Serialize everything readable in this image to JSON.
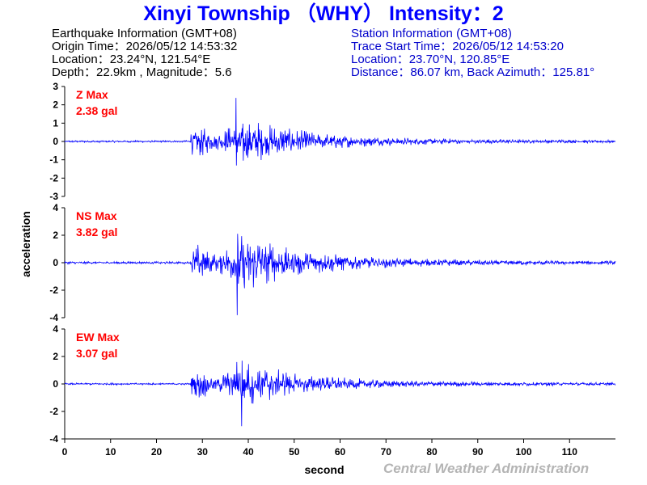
{
  "title": "Xinyi Township （WHY） Intensity：2",
  "earthquake": {
    "heading": "Earthquake Information  (GMT+08)",
    "origin_time": "Origin Time：2026/05/12 14:53:32",
    "location": "Location：23.24°N, 121.54°E",
    "depth_magnitude": "Depth：22.9km , Magnitude：5.6"
  },
  "station": {
    "heading": "Station Information  (GMT+08)",
    "trace_start": "Trace Start Time：2026/05/12 14:53:20",
    "location": "Location：23.70°N, 120.85°E",
    "distance": "Distance：86.07 km, Back Azimuth：125.81°"
  },
  "credit": "Central Weather Administration",
  "colors": {
    "title": "#0000ff",
    "trace": "#0000ff",
    "max_label": "#ff0000",
    "station_text": "#0000cc",
    "credit": "#b4b4b4"
  },
  "chart_data": {
    "type": "line",
    "xlabel": "second",
    "ylabel": "acceleration",
    "xlim": [
      0,
      120
    ],
    "x_ticks": [
      0,
      10,
      20,
      30,
      40,
      50,
      60,
      70,
      80,
      90,
      100,
      110
    ],
    "x_tick_labels": [
      "0",
      "10",
      "20",
      "30",
      "40",
      "50",
      "60",
      "70",
      "80",
      "90",
      "100",
      "110"
    ],
    "p_arrival_s": 27.5,
    "s_arrival_s": 37.5,
    "series": [
      {
        "component": "Z",
        "label_line1": "Z Max",
        "label_line2": "2.38 gal",
        "max_gal": 2.38,
        "ylim": [
          -3,
          3
        ],
        "y_ticks": [
          3,
          2,
          1,
          0,
          -1,
          -2,
          -3
        ],
        "y_tick_labels": [
          "3",
          "2",
          "1",
          "0",
          "-1",
          "-2",
          "-3"
        ],
        "peak_time_s": 37.3,
        "peak_sign": 1
      },
      {
        "component": "NS",
        "label_line1": "NS Max",
        "label_line2": "3.82 gal",
        "max_gal": 3.82,
        "ylim": [
          -4,
          4
        ],
        "y_ticks": [
          4,
          2,
          0,
          -2,
          -4
        ],
        "y_tick_labels": [
          "4",
          "2",
          "0",
          "-2",
          "-4"
        ],
        "peak_time_s": 37.6,
        "peak_sign": -1
      },
      {
        "component": "EW",
        "label_line1": "EW Max",
        "label_line2": "3.07 gal",
        "max_gal": 3.07,
        "ylim": [
          -4,
          4
        ],
        "y_ticks": [
          4,
          2,
          0,
          -2,
          -4
        ],
        "y_tick_labels": [
          "4",
          "2",
          "0",
          "-2",
          "-4"
        ],
        "peak_time_s": 38.6,
        "peak_sign": -1
      }
    ]
  }
}
